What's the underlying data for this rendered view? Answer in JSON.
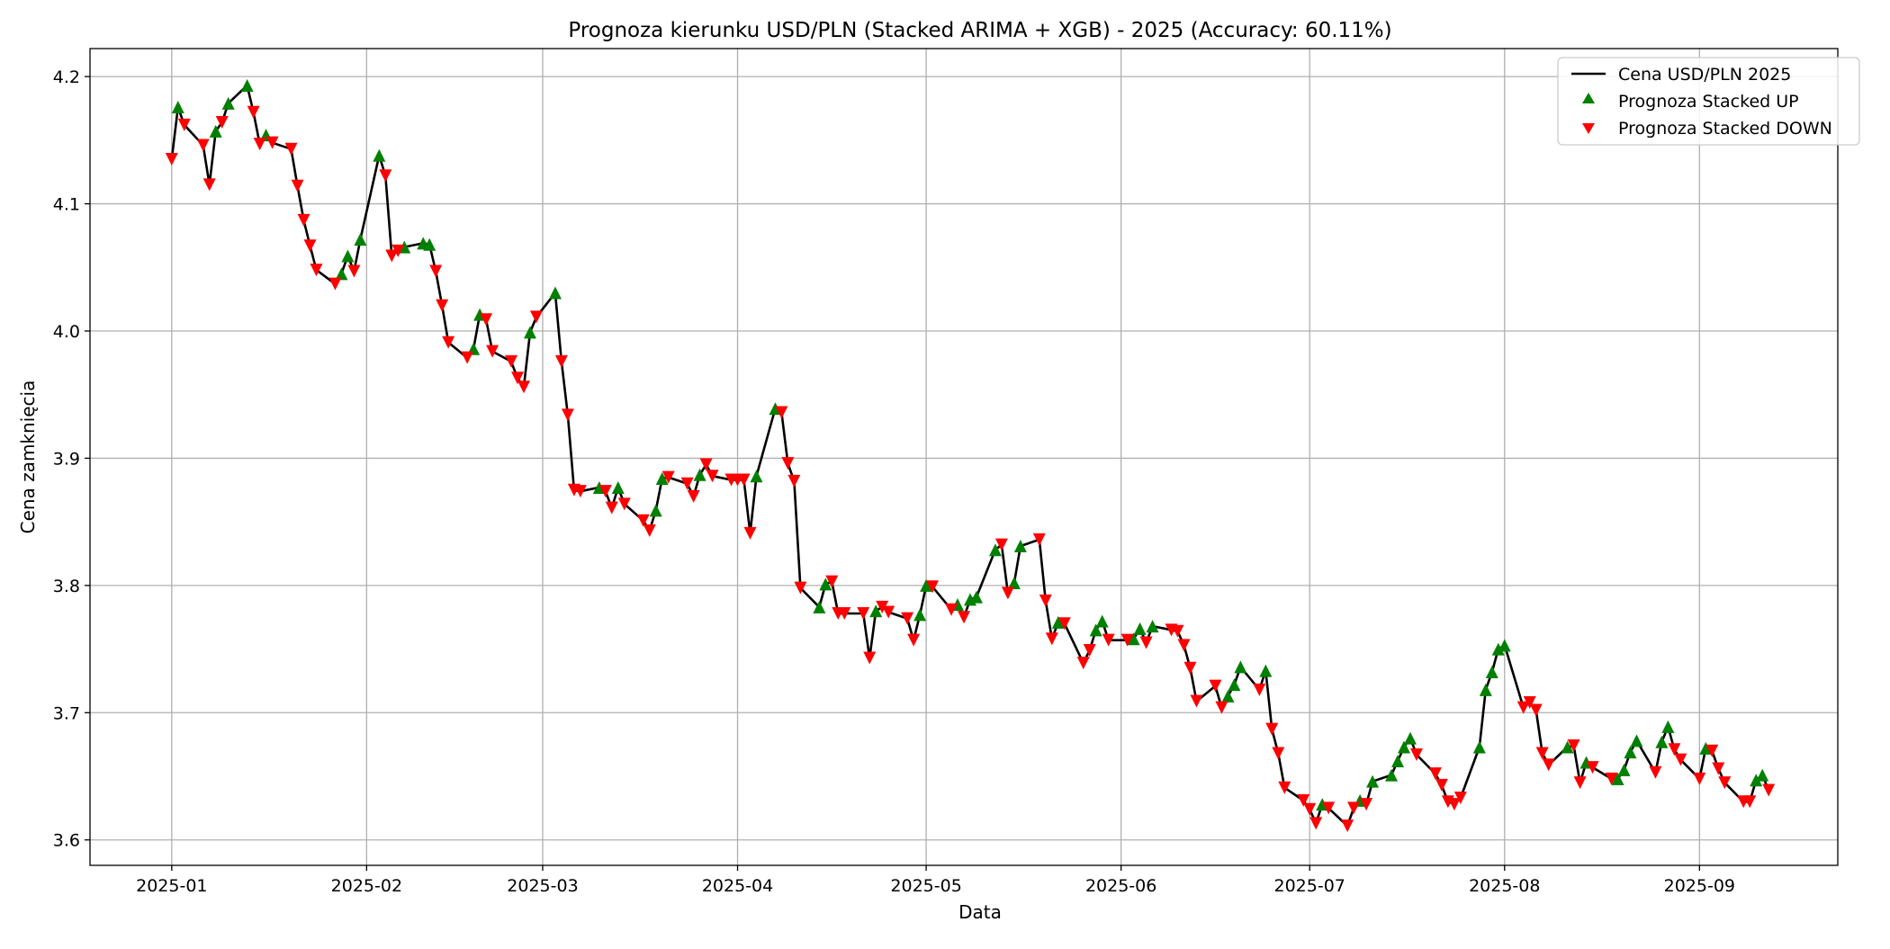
{
  "chart_data": {
    "type": "line",
    "title": "Prognoza kierunku USD/PLN (Stacked ARIMA + XGB) - 2025 (Accuracy: 60.11%)",
    "xlabel": "Data",
    "ylabel": "Cena zamknięcia",
    "x_axis_type": "date",
    "xlim": [
      "2024-12-19",
      "2025-09-23"
    ],
    "ylim": [
      3.58,
      4.222
    ],
    "x_ticks": [
      "2025-01-01",
      "2025-02-01",
      "2025-03-01",
      "2025-04-01",
      "2025-05-01",
      "2025-06-01",
      "2025-07-01",
      "2025-08-01",
      "2025-09-01"
    ],
    "x_tick_labels": [
      "2025-01",
      "2025-02",
      "2025-03",
      "2025-04",
      "2025-05",
      "2025-06",
      "2025-07",
      "2025-08",
      "2025-09"
    ],
    "y_ticks": [
      3.6,
      3.7,
      3.8,
      3.9,
      4.0,
      4.1,
      4.2
    ],
    "y_tick_labels": [
      "3.6",
      "3.7",
      "3.8",
      "3.9",
      "4.0",
      "4.1",
      "4.2"
    ],
    "grid": true,
    "legend_position": "top-right",
    "colors": {
      "line": "#000000",
      "up": "#008000",
      "down": "#ff0000",
      "grid": "#b0b0b0"
    },
    "series": [
      {
        "name": "Cena USD/PLN 2025",
        "type": "line",
        "points": [
          [
            "2025-01-01",
            4.135
          ],
          [
            "2025-01-02",
            4.176
          ],
          [
            "2025-01-03",
            4.162
          ],
          [
            "2025-01-06",
            4.146
          ],
          [
            "2025-01-07",
            4.115
          ],
          [
            "2025-01-08",
            4.157
          ],
          [
            "2025-01-09",
            4.164
          ],
          [
            "2025-01-10",
            4.179
          ],
          [
            "2025-01-13",
            4.193
          ],
          [
            "2025-01-14",
            4.172
          ],
          [
            "2025-01-15",
            4.147
          ],
          [
            "2025-01-16",
            4.154
          ],
          [
            "2025-01-17",
            4.148
          ],
          [
            "2025-01-20",
            4.143
          ],
          [
            "2025-01-21",
            4.114
          ],
          [
            "2025-01-22",
            4.087
          ],
          [
            "2025-01-23",
            4.067
          ],
          [
            "2025-01-24",
            4.048
          ],
          [
            "2025-01-27",
            4.037
          ],
          [
            "2025-01-28",
            4.045
          ],
          [
            "2025-01-29",
            4.059
          ],
          [
            "2025-01-30",
            4.047
          ],
          [
            "2025-01-31",
            4.072
          ],
          [
            "2025-02-03",
            4.138
          ],
          [
            "2025-02-04",
            4.122
          ],
          [
            "2025-02-05",
            4.059
          ],
          [
            "2025-02-06",
            4.063
          ],
          [
            "2025-02-07",
            4.066
          ],
          [
            "2025-02-10",
            4.069
          ],
          [
            "2025-02-11",
            4.068
          ],
          [
            "2025-02-12",
            4.047
          ],
          [
            "2025-02-13",
            4.02
          ],
          [
            "2025-02-14",
            3.991
          ],
          [
            "2025-02-17",
            3.979
          ],
          [
            "2025-02-18",
            3.986
          ],
          [
            "2025-02-19",
            4.013
          ],
          [
            "2025-02-20",
            4.009
          ],
          [
            "2025-02-21",
            3.984
          ],
          [
            "2025-02-24",
            3.976
          ],
          [
            "2025-02-25",
            3.963
          ],
          [
            "2025-02-26",
            3.956
          ],
          [
            "2025-02-27",
            3.999
          ],
          [
            "2025-02-28",
            4.011
          ],
          [
            "2025-03-03",
            4.03
          ],
          [
            "2025-03-04",
            3.976
          ],
          [
            "2025-03-05",
            3.934
          ],
          [
            "2025-03-06",
            3.875
          ],
          [
            "2025-03-07",
            3.874
          ],
          [
            "2025-03-10",
            3.877
          ],
          [
            "2025-03-11",
            3.874
          ],
          [
            "2025-03-12",
            3.861
          ],
          [
            "2025-03-13",
            3.877
          ],
          [
            "2025-03-14",
            3.864
          ],
          [
            "2025-03-17",
            3.851
          ],
          [
            "2025-03-18",
            3.843
          ],
          [
            "2025-03-19",
            3.859
          ],
          [
            "2025-03-20",
            3.884
          ],
          [
            "2025-03-21",
            3.885
          ],
          [
            "2025-03-24",
            3.88
          ],
          [
            "2025-03-25",
            3.87
          ],
          [
            "2025-03-26",
            3.887
          ],
          [
            "2025-03-27",
            3.895
          ],
          [
            "2025-03-28",
            3.886
          ],
          [
            "2025-03-31",
            3.883
          ],
          [
            "2025-04-01",
            3.883
          ],
          [
            "2025-04-02",
            3.883
          ],
          [
            "2025-04-03",
            3.841
          ],
          [
            "2025-04-04",
            3.886
          ],
          [
            "2025-04-07",
            3.939
          ],
          [
            "2025-04-08",
            3.936
          ],
          [
            "2025-04-09",
            3.896
          ],
          [
            "2025-04-10",
            3.882
          ],
          [
            "2025-04-11",
            3.798
          ],
          [
            "2025-04-14",
            3.783
          ],
          [
            "2025-04-15",
            3.801
          ],
          [
            "2025-04-16",
            3.803
          ],
          [
            "2025-04-17",
            3.778
          ],
          [
            "2025-04-18",
            3.778
          ],
          [
            "2025-04-21",
            3.778
          ],
          [
            "2025-04-22",
            3.743
          ],
          [
            "2025-04-23",
            3.78
          ],
          [
            "2025-04-24",
            3.783
          ],
          [
            "2025-04-25",
            3.779
          ],
          [
            "2025-04-28",
            3.774
          ],
          [
            "2025-04-29",
            3.757
          ],
          [
            "2025-04-30",
            3.777
          ],
          [
            "2025-05-01",
            3.8
          ],
          [
            "2025-05-02",
            3.799
          ],
          [
            "2025-05-05",
            3.781
          ],
          [
            "2025-05-06",
            3.785
          ],
          [
            "2025-05-07",
            3.775
          ],
          [
            "2025-05-08",
            3.789
          ],
          [
            "2025-05-09",
            3.791
          ],
          [
            "2025-05-12",
            3.828
          ],
          [
            "2025-05-13",
            3.832
          ],
          [
            "2025-05-14",
            3.794
          ],
          [
            "2025-05-15",
            3.802
          ],
          [
            "2025-05-16",
            3.831
          ],
          [
            "2025-05-19",
            3.836
          ],
          [
            "2025-05-20",
            3.788
          ],
          [
            "2025-05-21",
            3.758
          ],
          [
            "2025-05-22",
            3.771
          ],
          [
            "2025-05-23",
            3.77
          ],
          [
            "2025-05-26",
            3.739
          ],
          [
            "2025-05-27",
            3.749
          ],
          [
            "2025-05-28",
            3.765
          ],
          [
            "2025-05-29",
            3.772
          ],
          [
            "2025-05-30",
            3.757
          ],
          [
            "2025-06-02",
            3.757
          ],
          [
            "2025-06-03",
            3.758
          ],
          [
            "2025-06-04",
            3.766
          ],
          [
            "2025-06-05",
            3.755
          ],
          [
            "2025-06-06",
            3.768
          ],
          [
            "2025-06-09",
            3.765
          ],
          [
            "2025-06-10",
            3.764
          ],
          [
            "2025-06-11",
            3.753
          ],
          [
            "2025-06-12",
            3.735
          ],
          [
            "2025-06-13",
            3.709
          ],
          [
            "2025-06-16",
            3.721
          ],
          [
            "2025-06-17",
            3.704
          ],
          [
            "2025-06-18",
            3.713
          ],
          [
            "2025-06-19",
            3.722
          ],
          [
            "2025-06-20",
            3.736
          ],
          [
            "2025-06-23",
            3.718
          ],
          [
            "2025-06-24",
            3.733
          ],
          [
            "2025-06-25",
            3.687
          ],
          [
            "2025-06-26",
            3.668
          ],
          [
            "2025-06-27",
            3.641
          ],
          [
            "2025-06-30",
            3.631
          ],
          [
            "2025-07-01",
            3.624
          ],
          [
            "2025-07-02",
            3.613
          ],
          [
            "2025-07-03",
            3.628
          ],
          [
            "2025-07-04",
            3.625
          ],
          [
            "2025-07-07",
            3.611
          ],
          [
            "2025-07-08",
            3.625
          ],
          [
            "2025-07-09",
            3.631
          ],
          [
            "2025-07-10",
            3.628
          ],
          [
            "2025-07-11",
            3.646
          ],
          [
            "2025-07-14",
            3.651
          ],
          [
            "2025-07-15",
            3.662
          ],
          [
            "2025-07-16",
            3.673
          ],
          [
            "2025-07-17",
            3.68
          ],
          [
            "2025-07-18",
            3.667
          ],
          [
            "2025-07-21",
            3.652
          ],
          [
            "2025-07-22",
            3.643
          ],
          [
            "2025-07-23",
            3.63
          ],
          [
            "2025-07-24",
            3.628
          ],
          [
            "2025-07-25",
            3.633
          ],
          [
            "2025-07-28",
            3.673
          ],
          [
            "2025-07-29",
            3.718
          ],
          [
            "2025-07-30",
            3.732
          ],
          [
            "2025-07-31",
            3.75
          ],
          [
            "2025-08-01",
            3.753
          ],
          [
            "2025-08-04",
            3.704
          ],
          [
            "2025-08-05",
            3.708
          ],
          [
            "2025-08-06",
            3.702
          ],
          [
            "2025-08-07",
            3.668
          ],
          [
            "2025-08-08",
            3.659
          ],
          [
            "2025-08-11",
            3.673
          ],
          [
            "2025-08-12",
            3.674
          ],
          [
            "2025-08-13",
            3.645
          ],
          [
            "2025-08-14",
            3.661
          ],
          [
            "2025-08-15",
            3.657
          ],
          [
            "2025-08-18",
            3.648
          ],
          [
            "2025-08-19",
            3.648
          ],
          [
            "2025-08-20",
            3.655
          ],
          [
            "2025-08-21",
            3.669
          ],
          [
            "2025-08-22",
            3.678
          ],
          [
            "2025-08-25",
            3.653
          ],
          [
            "2025-08-26",
            3.677
          ],
          [
            "2025-08-27",
            3.689
          ],
          [
            "2025-08-28",
            3.671
          ],
          [
            "2025-08-29",
            3.663
          ],
          [
            "2025-09-01",
            3.648
          ],
          [
            "2025-09-02",
            3.672
          ],
          [
            "2025-09-03",
            3.67
          ],
          [
            "2025-09-04",
            3.656
          ],
          [
            "2025-09-05",
            3.645
          ],
          [
            "2025-09-08",
            3.63
          ],
          [
            "2025-09-09",
            3.63
          ],
          [
            "2025-09-10",
            3.647
          ],
          [
            "2025-09-11",
            3.651
          ],
          [
            "2025-09-12",
            3.639
          ]
        ]
      },
      {
        "name": "Prognoza Stacked UP",
        "type": "scatter",
        "marker": "triangle-up",
        "dates": [
          "2025-01-02",
          "2025-01-08",
          "2025-01-10",
          "2025-01-13",
          "2025-01-16",
          "2025-01-28",
          "2025-01-29",
          "2025-01-31",
          "2025-02-03",
          "2025-02-07",
          "2025-02-10",
          "2025-02-11",
          "2025-02-18",
          "2025-02-19",
          "2025-02-27",
          "2025-03-03",
          "2025-03-10",
          "2025-03-13",
          "2025-03-19",
          "2025-03-20",
          "2025-03-26",
          "2025-04-04",
          "2025-04-07",
          "2025-04-14",
          "2025-04-15",
          "2025-04-23",
          "2025-04-30",
          "2025-05-01",
          "2025-05-06",
          "2025-05-08",
          "2025-05-09",
          "2025-05-12",
          "2025-05-15",
          "2025-05-16",
          "2025-05-22",
          "2025-05-28",
          "2025-05-29",
          "2025-06-03",
          "2025-06-04",
          "2025-06-06",
          "2025-06-18",
          "2025-06-19",
          "2025-06-20",
          "2025-06-24",
          "2025-07-03",
          "2025-07-09",
          "2025-07-11",
          "2025-07-14",
          "2025-07-15",
          "2025-07-16",
          "2025-07-17",
          "2025-07-28",
          "2025-07-29",
          "2025-07-30",
          "2025-07-31",
          "2025-08-01",
          "2025-08-11",
          "2025-08-14",
          "2025-08-19",
          "2025-08-20",
          "2025-08-21",
          "2025-08-22",
          "2025-08-26",
          "2025-08-27",
          "2025-09-02",
          "2025-09-10",
          "2025-09-11"
        ]
      },
      {
        "name": "Prognoza Stacked DOWN",
        "type": "scatter",
        "marker": "triangle-down",
        "dates": [
          "2025-01-01",
          "2025-01-03",
          "2025-01-06",
          "2025-01-07",
          "2025-01-09",
          "2025-01-14",
          "2025-01-15",
          "2025-01-17",
          "2025-01-20",
          "2025-01-21",
          "2025-01-22",
          "2025-01-23",
          "2025-01-24",
          "2025-01-27",
          "2025-01-30",
          "2025-02-04",
          "2025-02-05",
          "2025-02-06",
          "2025-02-12",
          "2025-02-13",
          "2025-02-14",
          "2025-02-17",
          "2025-02-20",
          "2025-02-21",
          "2025-02-24",
          "2025-02-25",
          "2025-02-26",
          "2025-02-28",
          "2025-03-04",
          "2025-03-05",
          "2025-03-06",
          "2025-03-07",
          "2025-03-11",
          "2025-03-12",
          "2025-03-14",
          "2025-03-17",
          "2025-03-18",
          "2025-03-21",
          "2025-03-24",
          "2025-03-25",
          "2025-03-27",
          "2025-03-28",
          "2025-03-31",
          "2025-04-01",
          "2025-04-02",
          "2025-04-03",
          "2025-04-08",
          "2025-04-09",
          "2025-04-10",
          "2025-04-11",
          "2025-04-16",
          "2025-04-17",
          "2025-04-18",
          "2025-04-21",
          "2025-04-22",
          "2025-04-24",
          "2025-04-25",
          "2025-04-28",
          "2025-04-29",
          "2025-05-02",
          "2025-05-05",
          "2025-05-07",
          "2025-05-13",
          "2025-05-14",
          "2025-05-19",
          "2025-05-20",
          "2025-05-21",
          "2025-05-23",
          "2025-05-26",
          "2025-05-27",
          "2025-05-30",
          "2025-06-02",
          "2025-06-05",
          "2025-06-09",
          "2025-06-10",
          "2025-06-11",
          "2025-06-12",
          "2025-06-13",
          "2025-06-16",
          "2025-06-17",
          "2025-06-23",
          "2025-06-25",
          "2025-06-26",
          "2025-06-27",
          "2025-06-30",
          "2025-07-01",
          "2025-07-02",
          "2025-07-04",
          "2025-07-07",
          "2025-07-08",
          "2025-07-10",
          "2025-07-18",
          "2025-07-21",
          "2025-07-22",
          "2025-07-23",
          "2025-07-24",
          "2025-07-25",
          "2025-08-04",
          "2025-08-05",
          "2025-08-06",
          "2025-08-07",
          "2025-08-08",
          "2025-08-12",
          "2025-08-13",
          "2025-08-15",
          "2025-08-18",
          "2025-08-25",
          "2025-08-28",
          "2025-08-29",
          "2025-09-01",
          "2025-09-03",
          "2025-09-04",
          "2025-09-05",
          "2025-09-08",
          "2025-09-09",
          "2025-09-12"
        ]
      }
    ]
  }
}
